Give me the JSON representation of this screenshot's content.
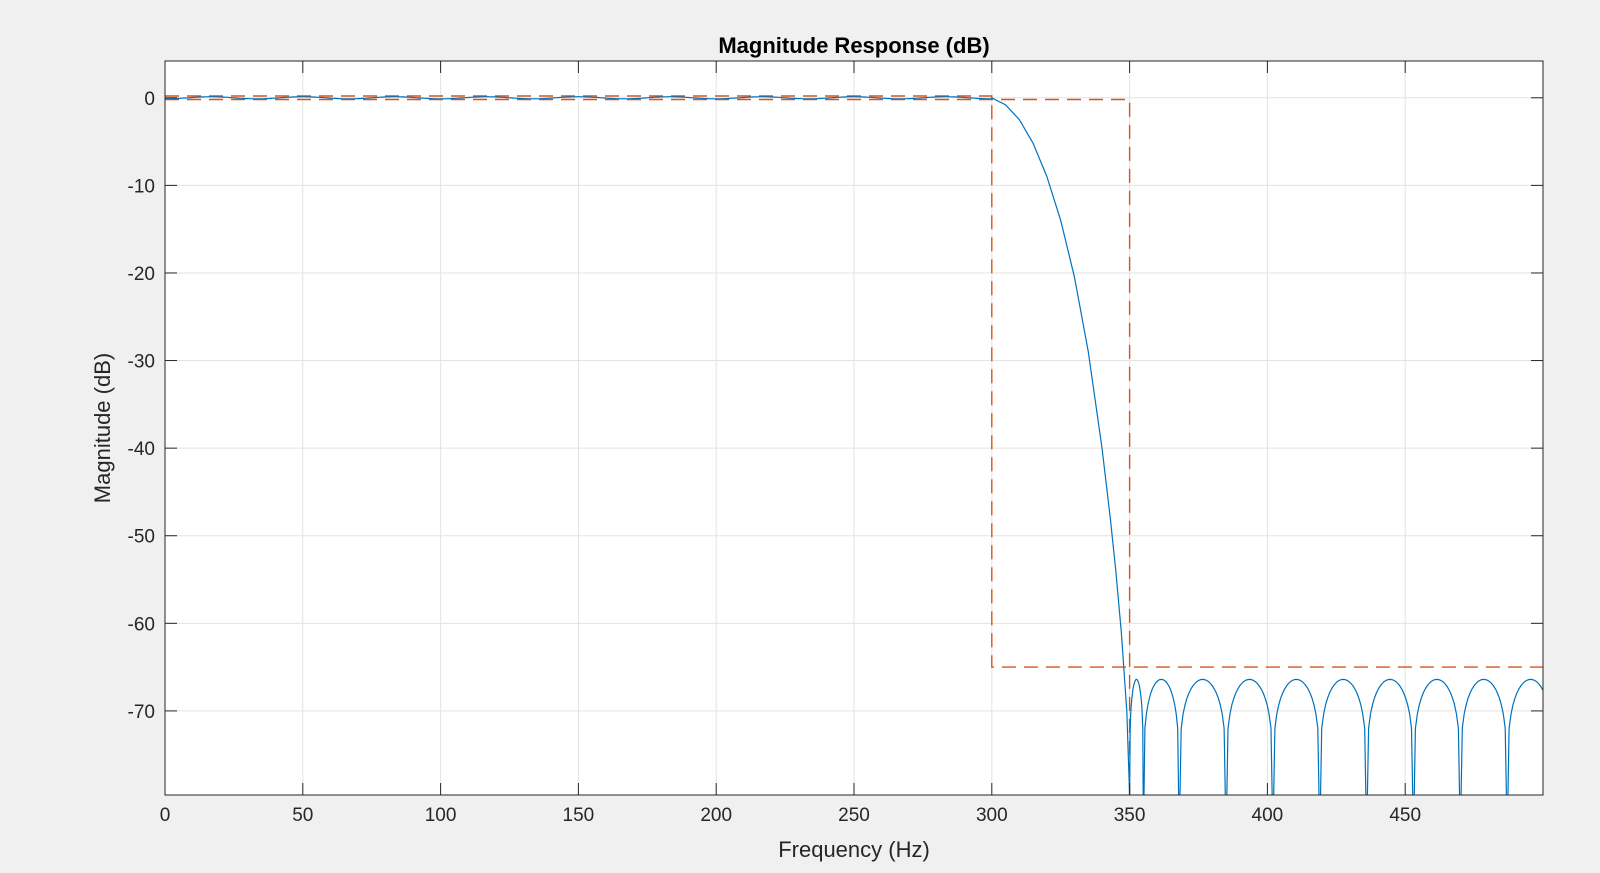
{
  "chart_data": {
    "type": "line",
    "title": "Magnitude Response (dB)",
    "xlabel": "Frequency (Hz)",
    "ylabel": "Magnitude (dB)",
    "xlim": [
      0,
      500
    ],
    "ylim": [
      -79.6,
      4.2
    ],
    "grid": true,
    "x_ticks": [
      0,
      50,
      100,
      150,
      200,
      250,
      300,
      350,
      400,
      450
    ],
    "x_tick_labels": [
      "0",
      "50",
      "100",
      "150",
      "200",
      "250",
      "300",
      "350",
      "400",
      "450"
    ],
    "y_ticks": [
      0,
      -10,
      -20,
      -30,
      -40,
      -50,
      -60,
      -70
    ],
    "y_tick_labels": [
      "0",
      "-10",
      "-20",
      "-30",
      "-40",
      "-50",
      "-60",
      "-70"
    ],
    "series": [
      {
        "color": "#0072bd",
        "style": "solid",
        "description_passband": {
          "x_range": [
            0,
            300
          ],
          "ripple_db": 0.2,
          "ripple_count": 9
        },
        "transition": {
          "x": [
            300,
            305,
            310,
            315,
            320,
            325,
            330,
            335,
            340,
            343,
            345,
            347,
            349,
            350
          ],
          "values": [
            0,
            -0.8,
            -2.5,
            -5.2,
            -9,
            -14,
            -20.5,
            -29,
            -40,
            -48,
            -54,
            -61,
            -70,
            -79.6
          ]
        },
        "stopband": {
          "nulls": [
            350,
            355,
            368,
            385,
            402,
            419,
            436,
            453,
            470,
            487
          ],
          "peak_db": -66.4
        }
      },
      {
        "color": "#d95319",
        "style": "dashed",
        "x": [
          0,
          300,
          300,
          500
        ],
        "values": [
          0.2,
          0.2,
          -65,
          -65
        ]
      },
      {
        "color": "#d95319",
        "style": "dashed",
        "x": [
          0,
          350,
          350
        ],
        "values": [
          -0.2,
          -0.2,
          -79.6
        ]
      }
    ]
  }
}
